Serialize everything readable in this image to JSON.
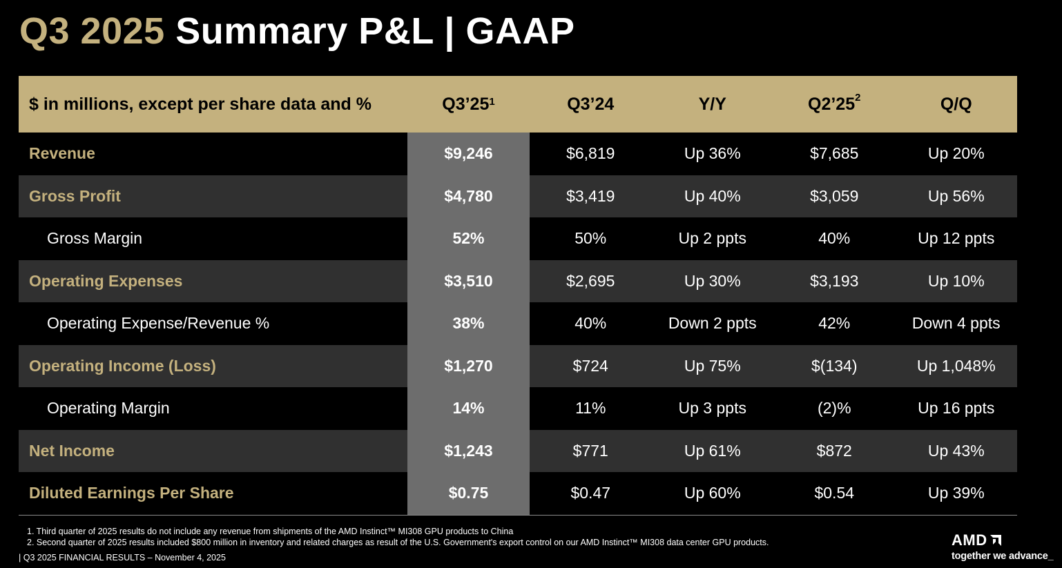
{
  "title": {
    "part1": "Q3 2025",
    "part2": "Summary P&L  |  GAAP"
  },
  "table": {
    "headers": {
      "label": "$ in millions, except per share data and %",
      "q325": "Q3’25",
      "q325_sup": "1",
      "q324": "Q3’24",
      "yy": "Y/Y",
      "q225": "Q2’25",
      "q225_sup": "2",
      "qq": "Q/Q"
    },
    "rows": [
      {
        "label": "Revenue",
        "q325": "$9,246",
        "q324": "$6,819",
        "yy": "Up 36%",
        "q225": "$7,685",
        "qq": "Up 20%"
      },
      {
        "label": "Gross Profit",
        "q325": "$4,780",
        "q324": "$3,419",
        "yy": "Up 40%",
        "q225": "$3,059",
        "qq": "Up 56%"
      },
      {
        "label": "Gross Margin",
        "q325": "52%",
        "q324": "50%",
        "yy": "Up 2 ppts",
        "q225": "40%",
        "qq": "Up 12 ppts"
      },
      {
        "label": "Operating Expenses",
        "q325": "$3,510",
        "q324": "$2,695",
        "yy": "Up 30%",
        "q225": "$3,193",
        "qq": "Up 10%"
      },
      {
        "label": "Operating Expense/Revenue %",
        "q325": "38%",
        "q324": "40%",
        "yy": "Down 2 ppts",
        "q225": "42%",
        "qq": "Down 4 ppts"
      },
      {
        "label": "Operating Income (Loss)",
        "q325": "$1,270",
        "q324": "$724",
        "yy": "Up 75%",
        "q225": "$(134)",
        "qq": "Up 1,048%"
      },
      {
        "label": "Operating Margin",
        "q325": "14%",
        "q324": "11%",
        "yy": "Up 3 ppts",
        "q225": "(2)%",
        "qq": "Up 16 ppts"
      },
      {
        "label": "Net Income",
        "q325": "$1,243",
        "q324": "$771",
        "yy": "Up 61%",
        "q225": "$872",
        "qq": "Up 43%"
      },
      {
        "label": "Diluted Earnings Per Share",
        "q325": "$0.75",
        "q324": "$0.47",
        "yy": "Up 60%",
        "q225": "$0.54",
        "qq": "Up 39%"
      }
    ]
  },
  "footnotes": [
    "1. Third quarter of 2025 results do not include any revenue from shipments of the AMD Instinct™ MI308 GPU products to China",
    "2. Second quarter of 2025 results included $800 million in inventory and related charges as result of the U.S. Government's export control on our AMD Instinct™ MI308 data center GPU products."
  ],
  "footer": "|   Q3 2025 FINANCIAL RESULTS – November 4, 2025",
  "logo": {
    "brand": "AMD",
    "tagline": "together we advance_"
  },
  "colors": {
    "gold": "#c4b17e",
    "background": "#000000",
    "shade": "#303030",
    "highlight_column": "#6d6d6d"
  }
}
